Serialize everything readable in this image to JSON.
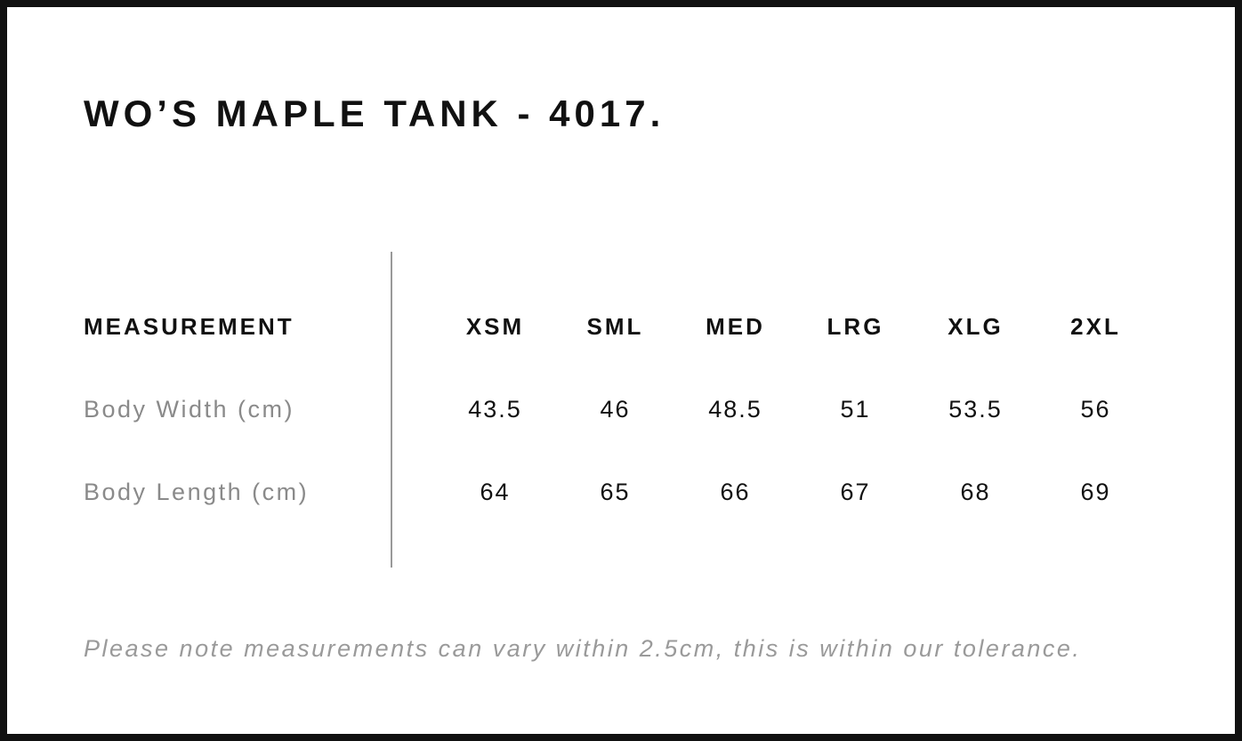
{
  "chart_data": {
    "type": "table",
    "title": "WO’S MAPLE TANK - 4017.",
    "columns": [
      "MEASUREMENT",
      "XSM",
      "SML",
      "MED",
      "LRG",
      "XLG",
      "2XL"
    ],
    "rows": [
      [
        "Body Width (cm)",
        "43.5",
        "46",
        "48.5",
        "51",
        "53.5",
        "56"
      ],
      [
        "Body Length (cm)",
        "64",
        "65",
        "66",
        "67",
        "68",
        "69"
      ]
    ],
    "footnote": "Please note measurements can vary within 2.5cm, this is within our tolerance."
  },
  "colors": {
    "text_primary": "#111111",
    "label_gray": "#8a8a8a",
    "note_gray": "#9a9a9a",
    "divider_gray": "#999999",
    "border_black": "#111111",
    "background": "#ffffff"
  }
}
